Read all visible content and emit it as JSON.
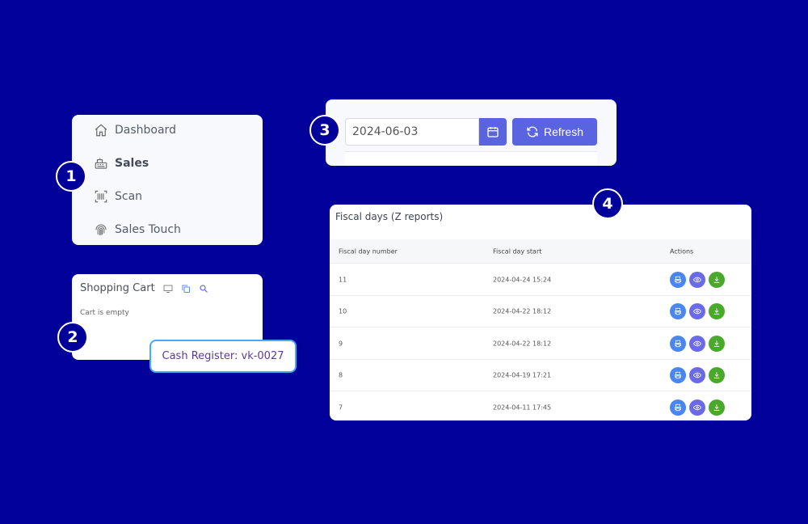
{
  "nav": {
    "items": [
      {
        "label": "Dashboard",
        "icon": "home-icon"
      },
      {
        "label": "Sales",
        "icon": "cash-register-icon",
        "active": true
      },
      {
        "label": "Scan",
        "icon": "barcode-icon"
      },
      {
        "label": "Sales Touch",
        "icon": "fingerprint-icon"
      }
    ]
  },
  "badges": [
    "1",
    "2",
    "3",
    "4"
  ],
  "cart": {
    "title": "Shopping Cart",
    "empty": "Cart is empty"
  },
  "tooltip": "Cash Register: vk-0027",
  "date": {
    "value": "2024-06-03",
    "refresh": "Refresh"
  },
  "fiscal": {
    "title": "Fiscal days (Z reports)",
    "headers": [
      "Fiscal day number",
      "Fiscal day start",
      "Actions"
    ],
    "rows": [
      [
        "11",
        "2024-04-24 15:24"
      ],
      [
        "10",
        "2024-04-22 18:12"
      ],
      [
        "9",
        "2024-04-22 18:12"
      ],
      [
        "8",
        "2024-04-19 17:21"
      ],
      [
        "7",
        "2024-04-11 17:45"
      ]
    ]
  },
  "colors": {
    "background": "#02029a",
    "primary": "#5b64e0",
    "print": "#4a86f0",
    "view": "#6a6ae8",
    "download": "#4aa82e"
  }
}
